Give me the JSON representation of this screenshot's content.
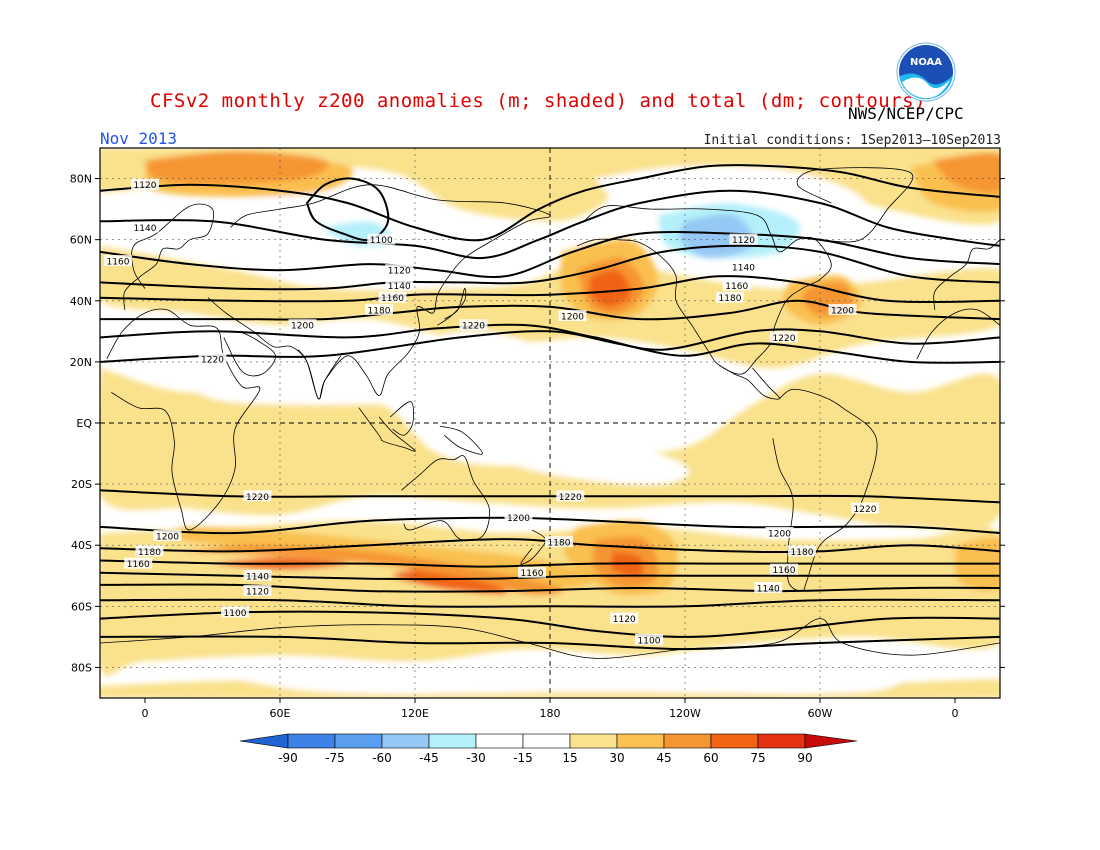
{
  "header": {
    "title": "CFSv2 monthly z200 anomalies (m; shaded) and total (dm; contours)",
    "agency": "NWS/NCEP/CPC",
    "period": "Nov 2013",
    "initial_conditions": "Initial conditions: 1Sep2013–10Sep2013",
    "logo_text": "NOAA"
  },
  "map": {
    "projection": "cylindrical equidistant",
    "lon_range": [
      -20,
      380
    ],
    "lat_range": [
      -90,
      90
    ],
    "lat_ticks": [
      {
        "value": 80,
        "label": "80N"
      },
      {
        "value": 60,
        "label": "60N"
      },
      {
        "value": 40,
        "label": "40N"
      },
      {
        "value": 20,
        "label": "20N"
      },
      {
        "value": 0,
        "label": "EQ"
      },
      {
        "value": -20,
        "label": "20S"
      },
      {
        "value": -40,
        "label": "40S"
      },
      {
        "value": -60,
        "label": "60S"
      },
      {
        "value": -80,
        "label": "80S"
      }
    ],
    "lon_ticks": [
      {
        "value": 0,
        "label": "0"
      },
      {
        "value": 60,
        "label": "60E"
      },
      {
        "value": 120,
        "label": "120E"
      },
      {
        "value": 180,
        "label": "180"
      },
      {
        "value": 240,
        "label": "120W"
      },
      {
        "value": 300,
        "label": "60W"
      },
      {
        "value": 360,
        "label": "0"
      }
    ],
    "colors": {
      "neg90": "#1e64d2",
      "neg75": "#3c82e6",
      "neg60": "#5a9ef0",
      "neg45": "#96c8f5",
      "neg30": "#b4f0fa",
      "neutral": "#ffffff",
      "pos15": "#fae18c",
      "pos30": "#fac050",
      "pos45": "#f69632",
      "pos60": "#f06414",
      "pos75": "#e63210",
      "pos90": "#c80a0a"
    },
    "contours": [
      {
        "label": "1120",
        "label_lon": 0,
        "label_lat": 78
      },
      {
        "label": "1140",
        "label_lon": 0,
        "label_lat": 64
      },
      {
        "label": "1160",
        "label_lon": -12,
        "label_lat": 53
      },
      {
        "label": "1100",
        "label_lon": 105,
        "label_lat": 60
      },
      {
        "label": "1120",
        "label_lon": 113,
        "label_lat": 50
      },
      {
        "label": "1140",
        "label_lon": 113,
        "label_lat": 45
      },
      {
        "label": "1160",
        "label_lon": 110,
        "label_lat": 41
      },
      {
        "label": "1180",
        "label_lon": 104,
        "label_lat": 37
      },
      {
        "label": "1200",
        "label_lon": 70,
        "label_lat": 32
      },
      {
        "label": "1220",
        "label_lon": 146,
        "label_lat": 32
      },
      {
        "label": "1200",
        "label_lon": 190,
        "label_lat": 35
      },
      {
        "label": "1220",
        "label_lon": 30,
        "label_lat": 21
      },
      {
        "label": "1120",
        "label_lon": 266,
        "label_lat": 60
      },
      {
        "label": "1140",
        "label_lon": 266,
        "label_lat": 51
      },
      {
        "label": "1160",
        "label_lon": 263,
        "label_lat": 45
      },
      {
        "label": "1180",
        "label_lon": 260,
        "label_lat": 41
      },
      {
        "label": "1200",
        "label_lon": 310,
        "label_lat": 37
      },
      {
        "label": "1220",
        "label_lon": 284,
        "label_lat": 28
      },
      {
        "label": "1220",
        "label_lon": 50,
        "label_lat": -24
      },
      {
        "label": "1220",
        "label_lon": 189,
        "label_lat": -24
      },
      {
        "label": "1220",
        "label_lon": 320,
        "label_lat": -28
      },
      {
        "label": "1200",
        "label_lon": 10,
        "label_lat": -37
      },
      {
        "label": "1200",
        "label_lon": 166,
        "label_lat": -31
      },
      {
        "label": "1200",
        "label_lon": 282,
        "label_lat": -36
      },
      {
        "label": "1180",
        "label_lon": 2,
        "label_lat": -42
      },
      {
        "label": "1180",
        "label_lon": 184,
        "label_lat": -39
      },
      {
        "label": "1180",
        "label_lon": 292,
        "label_lat": -42
      },
      {
        "label": "1160",
        "label_lon": -3,
        "label_lat": -46
      },
      {
        "label": "1160",
        "label_lon": 172,
        "label_lat": -49
      },
      {
        "label": "1160",
        "label_lon": 284,
        "label_lat": -48
      },
      {
        "label": "1140",
        "label_lon": 50,
        "label_lat": -50
      },
      {
        "label": "1140",
        "label_lon": 277,
        "label_lat": -54
      },
      {
        "label": "1120",
        "label_lon": 50,
        "label_lat": -55
      },
      {
        "label": "1120",
        "label_lon": 213,
        "label_lat": -64
      },
      {
        "label": "1100",
        "label_lon": 40,
        "label_lat": -62
      },
      {
        "label": "1100",
        "label_lon": 224,
        "label_lat": -71
      }
    ]
  },
  "colorbar": {
    "labels": [
      "-90",
      "-75",
      "-60",
      "-45",
      "-30",
      "-15",
      "15",
      "30",
      "45",
      "60",
      "75",
      "90"
    ]
  }
}
